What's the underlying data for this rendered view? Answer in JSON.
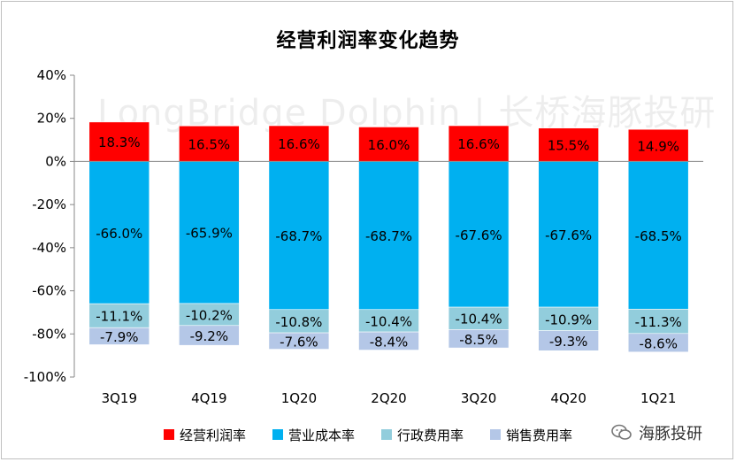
{
  "chart_data": {
    "type": "bar",
    "stacked": true,
    "title": "经营利润率变化趋势",
    "categories": [
      "3Q19",
      "4Q19",
      "1Q20",
      "2Q20",
      "3Q20",
      "4Q20",
      "1Q21"
    ],
    "ylim": [
      -100,
      40
    ],
    "yticks": [
      40,
      20,
      0,
      -20,
      -40,
      -60,
      -80,
      -100
    ],
    "ytick_labels": [
      "40%",
      "20%",
      "0%",
      "-20%",
      "-40%",
      "-60%",
      "-80%",
      "-100%"
    ],
    "grid": false,
    "legend_position": "bottom",
    "series": [
      {
        "name": "经营利润率",
        "color": "#ff0000",
        "values": [
          18.3,
          16.5,
          16.6,
          16.0,
          16.6,
          15.5,
          14.9
        ],
        "labels": [
          "18.3%",
          "16.5%",
          "16.6%",
          "16.0%",
          "16.6%",
          "15.5%",
          "14.9%"
        ]
      },
      {
        "name": "营业成本率",
        "color": "#00b0f0",
        "values": [
          -66.0,
          -65.9,
          -68.7,
          -68.7,
          -67.6,
          -67.6,
          -68.5
        ],
        "labels": [
          "-66.0%",
          "-65.9%",
          "-68.7%",
          "-68.7%",
          "-67.6%",
          "-67.6%",
          "-68.5%"
        ]
      },
      {
        "name": "行政费用率",
        "color": "#92cddc",
        "values": [
          -11.1,
          -10.2,
          -10.8,
          -10.4,
          -10.4,
          -10.9,
          -11.3
        ],
        "labels": [
          "-11.1%",
          "-10.2%",
          "-10.8%",
          "-10.4%",
          "-10.4%",
          "-10.9%",
          "-11.3%"
        ]
      },
      {
        "name": "销售费用率",
        "color": "#b4c7e7",
        "values": [
          -7.9,
          -9.2,
          -7.6,
          -8.4,
          -8.5,
          -9.3,
          -8.6
        ],
        "labels": [
          "-7.9%",
          "-9.2%",
          "-7.6%",
          "-8.4%",
          "-8.5%",
          "-9.3%",
          "-8.6%"
        ]
      }
    ]
  },
  "watermark": "LongBridge Dolphin | 长桥海豚投研",
  "brand": {
    "label": "海豚投研",
    "icon": "wechat-icon"
  }
}
